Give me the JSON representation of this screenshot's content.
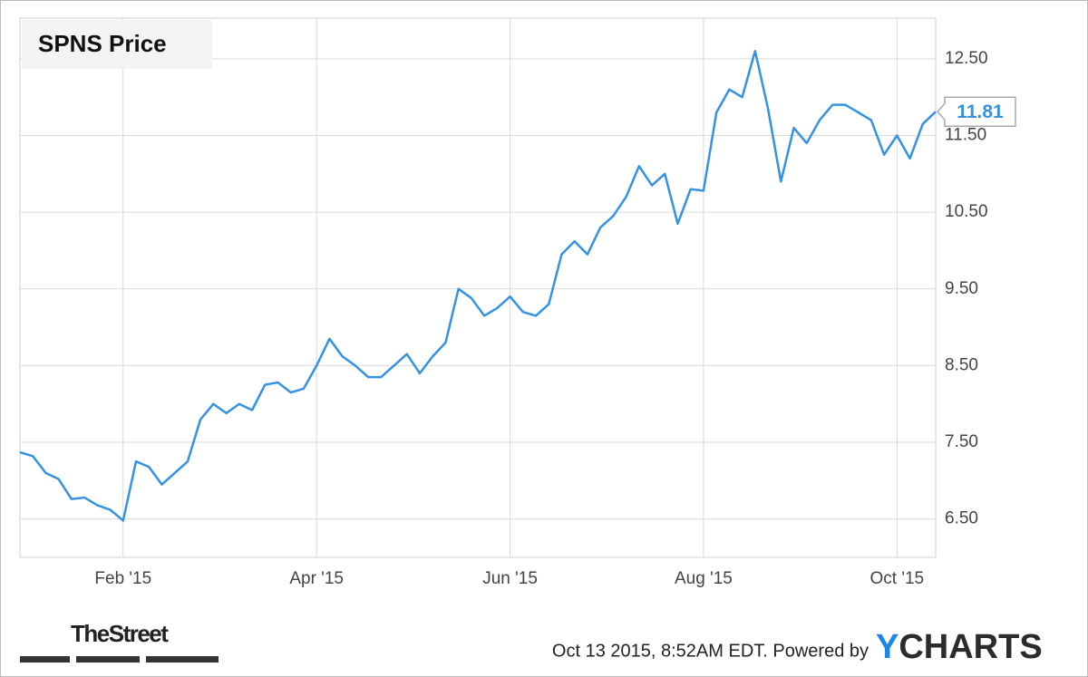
{
  "chart_data": {
    "type": "line",
    "title": "SPNS Price",
    "footer": "Oct 13 2015, 8:52AM EDT. Powered by",
    "brand": [
      "Y",
      "CHARTS"
    ],
    "source_logo": "TheStreet",
    "categories": [
      null,
      null,
      null,
      null,
      null,
      null,
      null,
      null,
      "Feb '15",
      null,
      null,
      null,
      null,
      null,
      null,
      null,
      null,
      null,
      null,
      null,
      null,
      null,
      null,
      "Apr '15",
      null,
      null,
      null,
      null,
      null,
      null,
      null,
      null,
      null,
      null,
      null,
      null,
      null,
      null,
      "Jun '15",
      null,
      null,
      null,
      null,
      null,
      null,
      null,
      null,
      null,
      null,
      null,
      null,
      null,
      null,
      "Aug '15",
      null,
      null,
      null,
      null,
      null,
      null,
      null,
      null,
      null,
      null,
      null,
      null,
      null,
      null,
      "Oct '15",
      null,
      null,
      null
    ],
    "series": [
      {
        "name": "SPNS Price",
        "color": "#3592e3",
        "values": [
          7.37,
          7.32,
          7.1,
          7.02,
          6.76,
          6.78,
          6.68,
          6.62,
          6.48,
          7.25,
          7.18,
          6.95,
          7.1,
          7.25,
          7.8,
          8.0,
          7.88,
          8.0,
          7.92,
          8.25,
          8.28,
          8.15,
          8.2,
          8.5,
          8.85,
          8.62,
          8.5,
          8.35,
          8.35,
          8.5,
          8.65,
          8.4,
          8.62,
          8.8,
          9.5,
          9.38,
          9.15,
          9.25,
          9.4,
          9.2,
          9.15,
          9.3,
          9.95,
          10.12,
          9.95,
          10.3,
          10.45,
          10.7,
          11.1,
          10.85,
          11.0,
          10.35,
          10.8,
          10.78,
          11.8,
          12.1,
          12.0,
          12.6,
          11.85,
          10.9,
          11.6,
          11.4,
          11.7,
          11.9,
          11.9,
          11.8,
          11.7,
          11.25,
          11.5,
          11.2,
          11.65,
          11.81
        ]
      }
    ],
    "ylim": [
      6.0,
      13.03
    ],
    "yticks": [
      {
        "value": 6.5,
        "label": "6.50"
      },
      {
        "value": 7.5,
        "label": "7.50"
      },
      {
        "value": 8.5,
        "label": "8.50"
      },
      {
        "value": 9.5,
        "label": "9.50"
      },
      {
        "value": 10.5,
        "label": "10.50"
      },
      {
        "value": 11.5,
        "label": "11.50"
      },
      {
        "value": 12.5,
        "label": "12.50"
      }
    ],
    "grid": true
  }
}
